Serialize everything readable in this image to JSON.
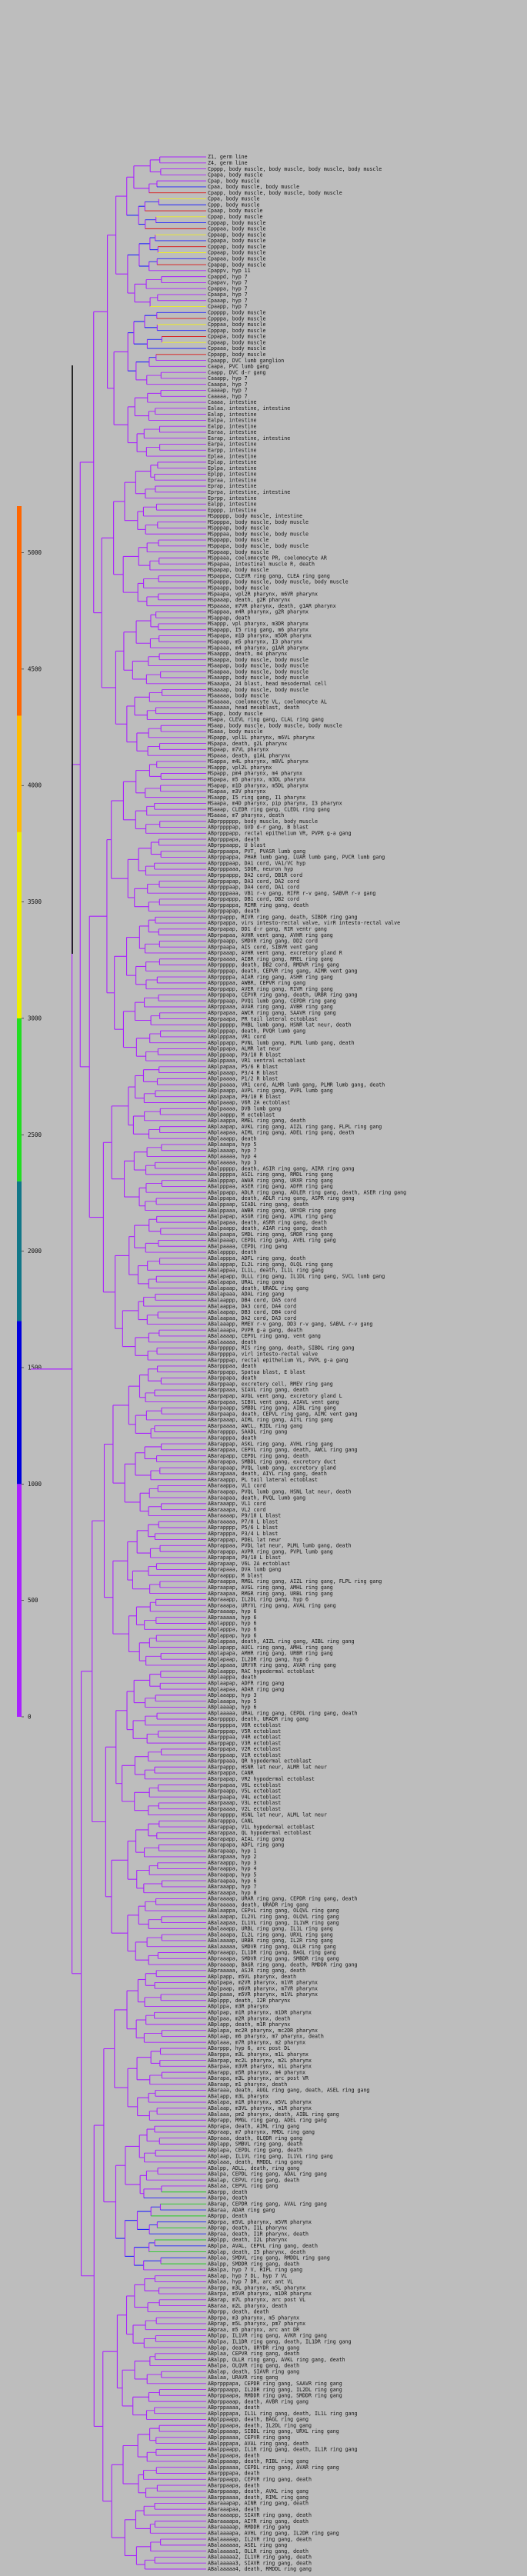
{
  "colors": {
    "background": "#bdbdbd",
    "scale": [
      "#aa22ff",
      "#0000dd",
      "#117788",
      "#22dd22",
      "#eeee00",
      "#ffbb00",
      "#ff6600"
    ],
    "purple": "#aa22ff",
    "blue": "#2222ff",
    "red": "#dd1111",
    "yellow": "#eeee22",
    "green": "#22cc22",
    "black": "#000000"
  },
  "scale": {
    "ticks": [
      "5000",
      "4500",
      "4000",
      "3500",
      "3000",
      "2500",
      "2000",
      "1500",
      "1000",
      "500",
      "0"
    ],
    "bands": [
      {
        "from": 0,
        "to": 1000,
        "color": "#aa22ff"
      },
      {
        "from": 1000,
        "to": 1700,
        "color": "#0000dd"
      },
      {
        "from": 1700,
        "to": 2300,
        "color": "#117788"
      },
      {
        "from": 2300,
        "to": 3000,
        "color": "#22dd22"
      },
      {
        "from": 3000,
        "to": 3800,
        "color": "#eeee00"
      },
      {
        "from": 3800,
        "to": 4300,
        "color": "#ffbb00"
      },
      {
        "from": 4300,
        "to": 5200,
        "color": "#ff6600"
      }
    ]
  },
  "leaves": [
    "Z1, germ line",
    "Z4, germ line",
    "Cpppp, body muscle, body muscle, body muscle, body muscle",
    "Cpapa, body muscle",
    "Cpap, body muscle",
    "Cpaa, body muscle, body muscle",
    "Cpapp, body muscle, body muscle, body muscle",
    "Cppa, body muscle",
    "Cppp, body muscle",
    "Cpaap, body muscle",
    "Cppap, body muscle",
    "Cpppap, body muscle",
    "Cpppaa, body muscle",
    "Cppaap, body muscle",
    "Cppapa, body muscle",
    "Cpppap, body muscle",
    "Cppaap, body muscle",
    "Cpapaa, body muscle",
    "Cpapap, body muscle",
    "Cpappv, hyp 11",
    "Cpappd, hyp 7",
    "Cpapav, hyp 7",
    "Cpappa, hyp 7",
    "Cpaapa, hyp 7",
    "Cpaaap, hyp 7",
    "Cpaapp, hyp 7",
    "Cppppp, body muscle",
    "Cppppa, body muscle",
    "Cpppaa, body muscle",
    "Cpppap, body muscle",
    "Cppapa, body muscle",
    "Cppaap, body muscle",
    "Cppaaa, body muscle",
    "Cppapp, body muscle",
    "Cpaapp, DVC lumb ganglion",
    "Caapa, PVC lumb gang",
    "Caapp, DVC d-r gang",
    "Caaapp, hyp 7",
    "Caaapa, hyp 7",
    "Caaaap, hyp 7",
    "Caaaaa, hyp 7",
    "Caaaa, intestine",
    "Ealaa, intestine, intestine",
    "Ealap, intestine",
    "Ealpa, intestine",
    "Ealpp, intestine",
    "Earaa, intestine",
    "Earap, intestine, intestine",
    "Earpa, intestine",
    "Earpp, intestine",
    "Eplaa, intestine",
    "Eplap, intestine",
    "Eplpa, intestine",
    "Eplpp, intestine",
    "Epraa, intestine",
    "Eprap, intestine",
    "Eprpa, intestine, intestine",
    "Eprpp, intestine",
    "Ealpp, intestine",
    "Epppp, intestine",
    "MSppppp, body muscle, intestine",
    "MSppppa, body muscle, body muscle",
    "MSpppap, body muscle",
    "MSpppaa, body muscle, body muscle",
    "MSppapp, body muscle",
    "MSppapa, body muscle, body muscle",
    "MSppaap, body muscle",
    "MSppaaa, coelomocyte PR, coelomocyte AR",
    "MSpapaa, intestinal muscle R, death",
    "MSpapap, body muscle",
    "MSpappa, CLEVR ring gang, CLEA ring gang",
    "MSpappp, body muscle, body muscle, body muscle",
    "MSpaapp, body muscle",
    "MSpaapa, vpl2R pharynx, m6VR pharynx",
    "MSpaaap, death, g2R pharynx",
    "MSpaaaa, m7VR pharynx, death, g1AR pharynx",
    "MSappaa, m4R pharynx, g2R pharynx",
    "MSappap, death",
    "MSappp, vpl pharynx, m3DR pharynx",
    "MSapapp, I5 ring gang, m6 pharynx",
    "MSapapa, m1D pharynx, m5DR pharynx",
    "MSapaap, m5 pharynx, I3 pharynx",
    "MSapaaa, m4 pharynx, g1AR pharynx",
    "MSaappp, death, m4 pharynx",
    "MSaappa, body muscle, body muscle",
    "MSaapap, body muscle, body muscle",
    "MSaapaa, body muscle, body muscle",
    "MSaaapp, body muscle, body muscle",
    "MSaaapa, 24 blast, head mesodermal cell",
    "MSaaaap, body muscle, body muscle",
    "MSaaaaa, body muscle",
    "MSaaaaa, coelomocyte VL, coelomocyte AL",
    "MSaaaaa, head mesoblast, death",
    "MSapp, body muscle",
    "MSapa, CLEVL ring gang, CLAL ring gang",
    "MSaap, body muscle, body muscle, body muscle",
    "MSaaa, body muscle",
    "MSpapp, vpl1L pharynx, m6VL pharynx",
    "MSpapa, death, g2L pharynx",
    "MSpaap, m7VL pharynx",
    "MSpaaa, death, g1AL pharynx",
    "MSappa, m4L pharynx, m8VL pharynx",
    "MSappp, vpl2L pharynx",
    "MSpapp, pm4 pharynx, m4 pharynx",
    "MSpapa, m5 pharynx, m3DL pharynx",
    "MSapap, m1D pharynx, m5DL pharynx",
    "MSapaa, m3V pharynx",
    "MSaapp, I5 ring gang, I1 pharynx",
    "MSaapa, m4D pharynx, pip pharynx, I3 pharynx",
    "MSaaap, CLEDR ring gang, CLEDL ring gang",
    "MSaaaa, m7 pharynx, death",
    "ABprpppppp, body muscle, body muscle",
    "ABprppppap, GVD d-r gang, B blast",
    "ABprpppapp, rectal epithelium VR, PVPR g-a gang",
    "ABprpppapa, death",
    "ABprppaapp, U blast",
    "ABprppaapa, PVT, PVASR lumb gang",
    "ABprppappa, PHAR lumb gang, LUAR lumb gang, PVCR lumb gang",
    "ABprpppaap, DA1 cord, VA1/VC hyp",
    "ABprpppaaa, SDQR, neuron hyp",
    "ABprppappp, DA2 cord, DB1R cord",
    "ABprppapap, DA3 cord, DA2 cord",
    "ABprpppaap, DA4 cord, DA1 cord",
    "ABprpppaaa, VB1 r-v gang, RIFR r-v gang, SABVR r-v gang",
    "ABprppappp, DB1 cord, DB2 cord",
    "ABprppappa, RIMR ring gang, death",
    "ABprppapap, death",
    "ABprpappp, RIVR ring gang, death, SIBDR ring gang",
    "ABprpappa, virs intesto-rectal valve, virR intesto-rectal valve",
    "ABprpapap, DD1 d-r gang, RIR ventr gang",
    "ABprpapaa, AVHR vent gang, AVHR ring gang",
    "ABprpaapp, SMDVR ring gang, DD2 cord",
    "ABprpaapa, AIS cord, SIBVR vent gang",
    "ABprpaaap, AVHR vent gang, excretory gland R",
    "ABprpaaaa, AIBR ring gang, RMEL ring gang",
    "ABprppppp, death, DB2 cord, RMDVR ring gang",
    "ABprpppap, death, CEPVR ring gang, AIMR vent gang",
    "ABprppppa, AIAR ring gang, ASHR ring gang",
    "ABprpppaa, AWBR, CEPVR ring gang",
    "ABprppapp, AVER ring gang, RIVR ring gang",
    "ABprppapa, CEPVR ring gang, death, URBR ring gang",
    "ABprppaap, PVQ1 lumb gang, CEPDR ring gang",
    "ABprppaaa, AVAR ring gang, AVBR ring gang",
    "ABprpapaa, AWCR ring gang, SAAVR ring gang",
    "ABprpaapa, PR tail lateral ectoblast",
    "ABplppppp, PHBL lumb gang, HSNR lat neur, death",
    "ABplpppap, death, PVQR lumb gang",
    "ABplpppaa, VR1 cord",
    "ABplppapp, PVNL lumb gang, PLML lumb gang, death",
    "ABplppapa, ALMR lat neur",
    "ABplppaap, P9/10 R blast",
    "ABplppaaa, VR1 ventral ectoblast",
    "ABplpapaa, P5/6 R blast",
    "ABplpaaap, P3/4 R blast",
    "ABplpaaaa, P1/2 R blast",
    "ABplpaaaa, VR1 cord, ALMR lumb gang, PLMR lumb gang, death",
    "ABplpaapp, AVPL ring gang, PVPL lumb gang",
    "ABplpaapa, P9/10 R blast",
    "ABplpaaap, V6R 2A ectoblast",
    "ABplpaaaa, DVB lumb gang",
    "ABplaappp, M ectoblast",
    "ABplaappa, RMEL ring gang, death",
    "ABplaapap, AVKL ring gang, AIZL ring gang, FLPL ring gang",
    "ABplaapaa, AIML ring gang, ADEL ring gang, death",
    "ABplaaapp, death",
    "ABplaaapa, hyp 5",
    "ABplaaaap, hyp 7",
    "ABplaaaaa, hyp 4",
    "ABplaaaaa, hyp 3",
    "ABalppppp, death, ASIR ring gang, AIRR ring gang",
    "ABalppppa, ASIL ring gang, RMDL ring gang",
    "ABalpppap, AWAR ring gang, URXR ring gang",
    "ABalpppaa, ASER ring gang, ADFR ring gang",
    "ABalppapp, ADLR ring gang, ADLER ring gang, death, ASER ring gang",
    "ABalppapa, death, ADLR ring gang, ASPR ring gang",
    "ABalppaap, SIADL ring gang, death",
    "ABalppaaa, AWBR ring gang, URYDR ring gang",
    "ABalpapap, ASGR ring gang, AIML ring gang",
    "ABalpapaa, death, ASRR ring gang, death",
    "ABalpaapp, death, AIAR ring gang, death",
    "ABalpaapa, SMDL ring gang, SMDR ring gang",
    "ABalpaaap, CEPDL ring gang, AVEL ring gang",
    "ABalpaaaa, CEPDL ring gang",
    "ABalapppp, death",
    "ABalapppa, ADFL ring gang, death",
    "ABalappap, IL2L ring gang, OLQL ring gang",
    "ABalappaa, IL1L, death, IL1L ring gang",
    "ABalapapp, OLLL ring gang, IL1DL ring gang, SVCL lumb gang",
    "ABalapapa, URAL ring gang",
    "ABalapaap, death, URADL ring gang",
    "ABalapaaa, ADAL ring gang",
    "ABalaappp, DB4 cord, DA5 cord",
    "ABalaappa, DA3 cord, DA4 cord",
    "ABalaapap, DB3 cord, DB4 cord",
    "ABalaapaa, DA2 cord, DA3 cord",
    "ABalaaapp, RMEV r-v gang, DD3 r-v gang, SABVL r-v gang",
    "ABalaaapa, PVPR g-a gang, death",
    "ABalaaaap, CEPVL ring gang, vent gang",
    "ABalaaaaa, death",
    "ABarppppp, RIS ring gang, death, SIBDL ring gang",
    "ABarppppa, virl intesto-rectal valve",
    "ABarpppap, rectal epithelium VL, PVPL g-a gang",
    "ABarpppaa, death",
    "ABarppapp, Spatua blast, E blast",
    "ABarppapa, death",
    "ABarppaap, excretory cell, RMEV ring gang",
    "ABarppaaa, SIAVL ring gang, death",
    "ABarpapap, AVGL vent gang, excretory gland L",
    "ABarpapaa, SIBVL vent gang, AIAVL vent gang",
    "ABarpaapp, SMBDL ring gang, AIBL ring gang",
    "ABarpaapa, death, CEPVL ring gang, AIMC vent gang",
    "ABarpaaap, AIML ring gang, AIYL ring gang",
    "ABarpaaaa, AWCL, RIDL ring gang",
    "ABarapppp, SAADL ring gang",
    "ABarapppa, death",
    "ABarappap, ASKL ring gang, AVHL ring gang",
    "ABarappaa, CEPVL ring gang, death, AWCL ring gang",
    "ABarapapp, CEPDL ring gang, death",
    "ABarapapa, SMBDL ring gang, excretory duct",
    "ABarapaap, PVQL lumb gang, excretory gland",
    "ABarapaaa, death, AIYL ring gang, death",
    "ABaraappp, PL tail lateral ectoblast",
    "ABaraappa, VL1 cord",
    "ABaraapap, PVQL lumb gang, HSNL lat neur, death",
    "ABaraapaa, death, PVQL lumb gang",
    "ABaraaapp, VL1 cord",
    "ABaraaapa, VL2 cord",
    "ABaraaaap, P9/10 L blast",
    "ABaraaaaa, P7/8 L blast",
    "ABprapppp, P5/6 L blast",
    "ABprapppa, P3/4 L blast",
    "ABprappap, PDEL lat neur",
    "ABprappaa, PVDL lat neur, PLML lumb gang, death",
    "ABprapapp, AVPR ring gang, PVPL lumb gang",
    "ABprapapa, P9/10 L blast",
    "ABprapaap, V6L 2A ectoblast",
    "ABprapaaa, DVA lumb gang",
    "ABpraappp, M blast",
    "ABpraappa, RMGL ring gang, AIZL ring gang, FLPL ring gang",
    "ABpraapap, AVGL ring gang, AMHL ring gang",
    "ABpraapaa, RMGR ring gang, URBL ring gang",
    "ABpraaapp, IL2DL ring gang, hyp 6",
    "ABpraaapa, URYVL ring gang, AVAL ring gang",
    "ABpraaaap, hyp 6",
    "ABpraaaaa, hyp 6",
    "ABplapppp, hyp 6",
    "ABplapppa, hyp 6",
    "ABplappap, hyp 6",
    "ABplappaa, death, AIZL ring gang, AIBL ring gang",
    "ABplapapp, AUCL ring gang, AMHL ring gang",
    "ABplapapa, AMHR ring gang, URBR ring gang",
    "ABplapaap, IL2DR ring gang, hyp 6",
    "ABplapaaa, URYVR ring gang, AVAR ring gang",
    "ABplaappp, RAC hypodermal ectoblast",
    "ABplaappa, death",
    "ABplaapap, ADFR ring gang",
    "ABplaapaa, ADAR ring gang",
    "ABplaaapp, hyp 3",
    "ABplaaapa, hyp 5",
    "ABplaaaap, hyp 6",
    "ABplaaaaa, URAL ring gang, CEPDL ring gang, death",
    "ABarppppp, death, URADR ring gang",
    "ABarppppa, V6R ectoblast",
    "ABarpppap, V5R ectoblast",
    "ABarpppaa, V4R ectoblast",
    "ABarppapp, V3R ectoblast",
    "ABarppapa, V2R ectoblast",
    "ABarppaap, V1R ectoblast",
    "ABarppaaa, QR hypodermal ectoblast",
    "ABarpappp, HSNR lat neur, ALMR lat neur",
    "ABarpappa, CANR",
    "ABarpapap, VR2 hypodermal ectoblast",
    "ABarpapaa, V6L ectoblast",
    "ABarpaapp, V5L ectoblast",
    "ABarpaapa, V4L ectoblast",
    "ABarpaaap, V3L ectoblast",
    "ABarpaaaa, V2L ectoblast",
    "ABarapppp, HSNL lat neur, ALML lat neur",
    "ABarapppa, CANL",
    "ABarappap, V1L hypodermal ectoblast",
    "ABarappaa, QL hypodermal ectoblast",
    "ABarapapp, AIAL ring gang",
    "ABarapapa, ADFL ring gang",
    "ABarapaap, hyp 1",
    "ABarapaaa, hyp 2",
    "ABaraappp, hyp 3",
    "ABaraappa, hyp 4",
    "ABaraapap, hyp 5",
    "ABaraapaa, hyp 6",
    "ABaraaapp, hyp 7",
    "ABaraaapa, hyp 8",
    "ABaraaaap, URAR ring gang, CEPDR ring gang, death",
    "ABaraaaaa, death, URADR ring gang",
    "ABalaappa, CEPvL ring gang, OLQVL ring gang",
    "ABalaapap, IL2VL ring gang, OLQVL ring gang",
    "ABalaapaa, IL1VL ring gang, IL1VR ring gang",
    "ABalaaapp, URBL ring gang, IL1L ring gang",
    "ABalaaapa, IL2L ring gang, URXL ring gang",
    "ABalaaaap, URBR ring gang, IL2R ring gang",
    "ABalaaaaa, SMDVR ring gang, OLLR ring gang",
    "ABpraaapp, IL1DR ring gang, BAGL ring gang",
    "ABpraaapa, SMDVR ring gang, SMBDR ring gang",
    "ABpraaaap, BAGR ring gang, death, RMDDR ring gang",
    "ABpraaaaa, ASJR ring gang, death",
    "ABplpapp, m5VL pharynx, death",
    "ABplpapa, m2VR pharynx, m1VR pharynx",
    "ABplpaap, m6VR pharynx, m7VR pharynx",
    "ABplpaaa, m5VR pharynx, m1VL pharynx",
    "ABplppp, death, I2R pharynx",
    "ABplppa, m3R pharynx",
    "ABplpap, m1R pharynx, m1DR pharynx",
    "ABplpaa, m2R pharynx, death",
    "ABplapp, death, m1R pharynx",
    "ABplapa, mc2R pharynx, mc2DR pharynx",
    "ABplaap, m6 pharynx, m7 pharynx, death",
    "ABplaaa, m7R pharynx, m2 pharynx",
    "ABarppp, hyp 6, arc post DL",
    "ABarppa, m3L pharynx, m1L pharynx",
    "ABarpap, mc2L pharynx, m2L pharynx",
    "ABarpaa, m3VR pharynx, m1L pharynx",
    "ABarapp, m5R pharynx, m4 pharynx",
    "ABarapa, m3L pharynx, arc post VR",
    "ABaraap, m1 pharynx, death",
    "ABaraaa, death, AUGL ring gang, death, ASEL ring gang",
    "ABalapp, m3L pharynx",
    "ABalapa, m1R pharynx, m5VL pharynx",
    "ABalaap, m3VL pharynx, m1R pharynx",
    "ABalaaa, pm2 pharynx, death, AIBL ring gang",
    "ABprapp, RMGL ring gang, ADEL ring gang",
    "ABprapa, death, AIML ring gang",
    "ABpraap, m7 pharynx, RMDL ring gang",
    "ABpraaa, death, OLQDR ring gang",
    "ABplapp, SMBVL ring gang, death",
    "ABplapa, CEPDL ring gang, death",
    "ABplaap, IL1VL ring gang, IL1VL ring gang",
    "ABplaaa, death, RMDDL ring gang",
    "ABalpp, ADLL, death, ring gang",
    "ABalpa, CEPDL ring gang, ADAL ring gang",
    "ABalap, CEPVL ring gang, death",
    "ABalaa, CEPVL ring gang",
    "ABarpp, death",
    "ABarpa, death",
    "ABarap, CEPDR ring gang, AVAL ring gang",
    "ABaraa, ADAR ring gang",
    "ABprpp, death",
    "ABprpa, m5VL pharynx, m5VR pharynx",
    "ABprap, death, I1L pharynx",
    "ABpraa, death, I1R pharynx, death",
    "ABplpp, death, I2L pharynx",
    "ABplpa, AVAL, CEPVL ring gang, death",
    "ABplap, death, I5 pharynx, death",
    "ABplaa, SMDVL ring gang, RMDDL ring gang",
    "ABalpp, SMDDR ring gang, death",
    "ABalpa, hyp 7 V, RIPL ring gang",
    "ABalap, hyp 7 DL, hyp 7 VL",
    "ABalaa, hyp 7 DR, arc ant VL",
    "ABarpp, m3L pharynx, m5L pharynx",
    "ABarpa, m5VR pharynx, m1DR pharynx",
    "ABarap, m7L pharynx, arc post VL",
    "ABaraa, m2L pharynx, death",
    "ABprpp, death, death",
    "ABprpa, m3 pharynx, m5 pharynx",
    "ABprap, m5L pharynx, pm7 pharynx",
    "ABpraa, m5 pharynx, arc ant DR",
    "ABplpp, IL1VR ring gang, AVKR ring gang",
    "ABplpa, IL1DR ring gang, death, IL1DR ring gang",
    "ABplap, death, URYDR ring gang",
    "ABplaa, CEPVR ring gang, death",
    "ABalpp, OLLR ring gang, AVKL ring gang, death",
    "ABalpa, OLQVR ring gang, death",
    "ABalap, death, SIAVR ring gang",
    "ABalaa, URAVR ring gang",
    "ABprpppapa, CEPDR ring gang, SAAVR ring gang",
    "ABprppaapp, IL2DR ring gang, IL2DL ring gang",
    "ABprppaapa, RMDDR ring gang, SMDDR ring gang",
    "ABprppaaap, death, AVBR ring gang",
    "ABprppaaaa, death",
    "ABplpppapa, IL1L ring gang, death, IL1L ring gang",
    "ABplppaapp, death, BAGL ring gang",
    "ABplppaapa, death, IL2DL ring gang",
    "ABplppaaap, SIBDL ring gang, URXL ring gang",
    "ABplppaaaa, CEPVR ring gang",
    "ABalpppapa, AVAL ring gang, death",
    "ABalppaapp, IL1R ring gang, death, IL1R ring gang",
    "ABalppaapa, death",
    "ABalppaaap, death, RIBL ring gang",
    "ABalppaaaa, CEPDL ring gang, AVAR ring gang",
    "ABarpppapa, death",
    "ABarppaapp, CEPVR ring gang, death",
    "ABarppaapa, death",
    "ABarppaaap, death, AVKL ring gang",
    "ABarppaaaa, death, RIML ring gang",
    "ABaraaapap, AINR ring gang, death",
    "ABaraaapaa, death",
    "ABaraaaapp, SIAVR ring gang, death",
    "ABaraaaapa, AIYR ring gang, death",
    "ABaraaaaap, RMDDR ring gang",
    "ABalaaaapa, AVHL ring gang, IL2DR ring gang",
    "ABalaaaaap, IL2VR ring gang, death",
    "ABalaaaaaa, ASEL ring gang",
    "ABalaaaaa1, OLLR ring gang, death",
    "ABalaaaaa2, IL1VR ring gang, death",
    "ABalaaaaa3, SIAVR ring gang, death",
    "ABalaaaaa4, death, RMDDL ring gang"
  ]
}
